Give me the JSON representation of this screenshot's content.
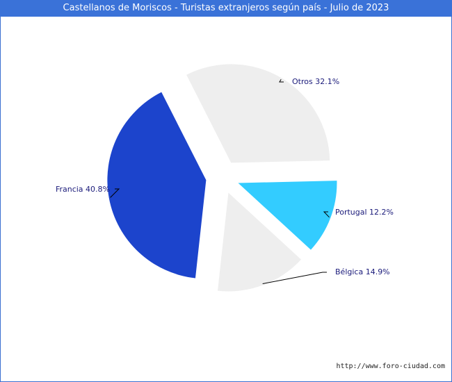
{
  "page": {
    "title": "Castellanos de Moriscos - Turistas extranjeros según país - Julio de 2023",
    "credit": "http://www.foro-ciudad.com"
  },
  "chart_data": {
    "type": "pie",
    "title": "Castellanos de Moriscos - Turistas extranjeros según país - Julio de 2023",
    "slices": [
      {
        "name": "Otros",
        "value": 32.1,
        "label": "Otros 32.1%",
        "color": "#eeeeee"
      },
      {
        "name": "Portugal",
        "value": 12.2,
        "label": "Portugal 12.2%",
        "color": "#33ccff"
      },
      {
        "name": "Bélgica",
        "value": 14.9,
        "label": "Bélgica 14.9%",
        "color": "#eeeeee"
      },
      {
        "name": "Francia",
        "value": 40.8,
        "label": "Francia 40.8%",
        "color": "#1c44cc"
      }
    ],
    "unit": "%"
  },
  "colors": {
    "title_bar": "#3a72d8",
    "border": "#3a6fd0",
    "label_text": "#1a1a7a",
    "leader_line": "#000000"
  }
}
